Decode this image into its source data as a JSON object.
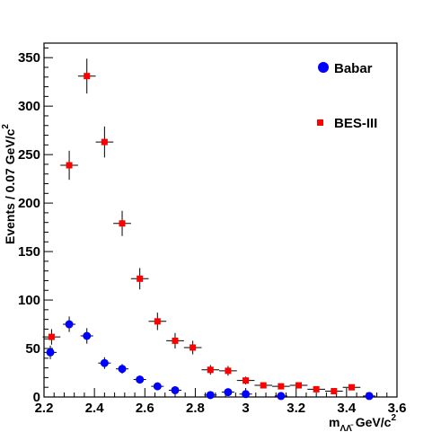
{
  "chart_data": {
    "type": "scatter",
    "xlabel": {
      "prefix": "m",
      "subscript": "ΛΛ̄",
      "suffix": " GeV/c",
      "sup": "2"
    },
    "ylabel": {
      "text": "Events / 0.07 GeV/c",
      "sup": "2"
    },
    "xlim": [
      2.2,
      3.6
    ],
    "ylim": [
      0,
      365
    ],
    "xticks": [
      "2.2",
      "2.4",
      "2.6",
      "2.8",
      "3",
      "3.2",
      "3.4",
      "3.6"
    ],
    "yticks": [
      "0",
      "50",
      "100",
      "150",
      "200",
      "250",
      "300",
      "350"
    ],
    "legend_position": "top-right",
    "series": [
      {
        "name": "Babar",
        "marker": "circle",
        "color": "#0000ff",
        "points": [
          {
            "x": 2.225,
            "y": 46,
            "xerr": 0.025,
            "yerr": 7
          },
          {
            "x": 2.3,
            "y": 75,
            "xerr": 0.025,
            "yerr": 8
          },
          {
            "x": 2.37,
            "y": 63,
            "xerr": 0.025,
            "yerr": 8
          },
          {
            "x": 2.44,
            "y": 35,
            "xerr": 0.025,
            "yerr": 6
          },
          {
            "x": 2.51,
            "y": 29,
            "xerr": 0.025,
            "yerr": 5
          },
          {
            "x": 2.58,
            "y": 18,
            "xerr": 0.025,
            "yerr": 4
          },
          {
            "x": 2.65,
            "y": 11,
            "xerr": 0.025,
            "yerr": 3
          },
          {
            "x": 2.72,
            "y": 7,
            "xerr": 0.025,
            "yerr": 3
          },
          {
            "x": 2.86,
            "y": 2,
            "xerr": 0.025,
            "yerr": 2
          },
          {
            "x": 2.93,
            "y": 5,
            "xerr": 0.025,
            "yerr": 2
          },
          {
            "x": 3.0,
            "y": 3,
            "xerr": 0.025,
            "yerr": 2
          },
          {
            "x": 3.14,
            "y": 1,
            "xerr": 0.025,
            "yerr": 1
          },
          {
            "x": 3.49,
            "y": 1,
            "xerr": 0.025,
            "yerr": 1
          }
        ]
      },
      {
        "name": "BES-III",
        "marker": "square",
        "color": "#ff0000",
        "points": [
          {
            "x": 2.23,
            "y": 62,
            "xerr": 0.035,
            "yerr": 8
          },
          {
            "x": 2.3,
            "y": 239,
            "xerr": 0.035,
            "yerr": 15
          },
          {
            "x": 2.37,
            "y": 331,
            "xerr": 0.035,
            "yerr": 18
          },
          {
            "x": 2.44,
            "y": 263,
            "xerr": 0.035,
            "yerr": 16
          },
          {
            "x": 2.51,
            "y": 179,
            "xerr": 0.035,
            "yerr": 13
          },
          {
            "x": 2.58,
            "y": 122,
            "xerr": 0.035,
            "yerr": 11
          },
          {
            "x": 2.65,
            "y": 78,
            "xerr": 0.035,
            "yerr": 9
          },
          {
            "x": 2.72,
            "y": 58,
            "xerr": 0.035,
            "yerr": 8
          },
          {
            "x": 2.79,
            "y": 51,
            "xerr": 0.035,
            "yerr": 7
          },
          {
            "x": 2.86,
            "y": 28,
            "xerr": 0.035,
            "yerr": 5
          },
          {
            "x": 2.93,
            "y": 27,
            "xerr": 0.035,
            "yerr": 5
          },
          {
            "x": 3.0,
            "y": 17,
            "xerr": 0.035,
            "yerr": 4
          },
          {
            "x": 3.07,
            "y": 12,
            "xerr": 0.035,
            "yerr": 3
          },
          {
            "x": 3.14,
            "y": 11,
            "xerr": 0.035,
            "yerr": 3
          },
          {
            "x": 3.21,
            "y": 12,
            "xerr": 0.035,
            "yerr": 3
          },
          {
            "x": 3.28,
            "y": 8,
            "xerr": 0.035,
            "yerr": 3
          },
          {
            "x": 3.35,
            "y": 6,
            "xerr": 0.035,
            "yerr": 2
          },
          {
            "x": 3.42,
            "y": 10,
            "xerr": 0.035,
            "yerr": 3
          }
        ]
      }
    ]
  }
}
